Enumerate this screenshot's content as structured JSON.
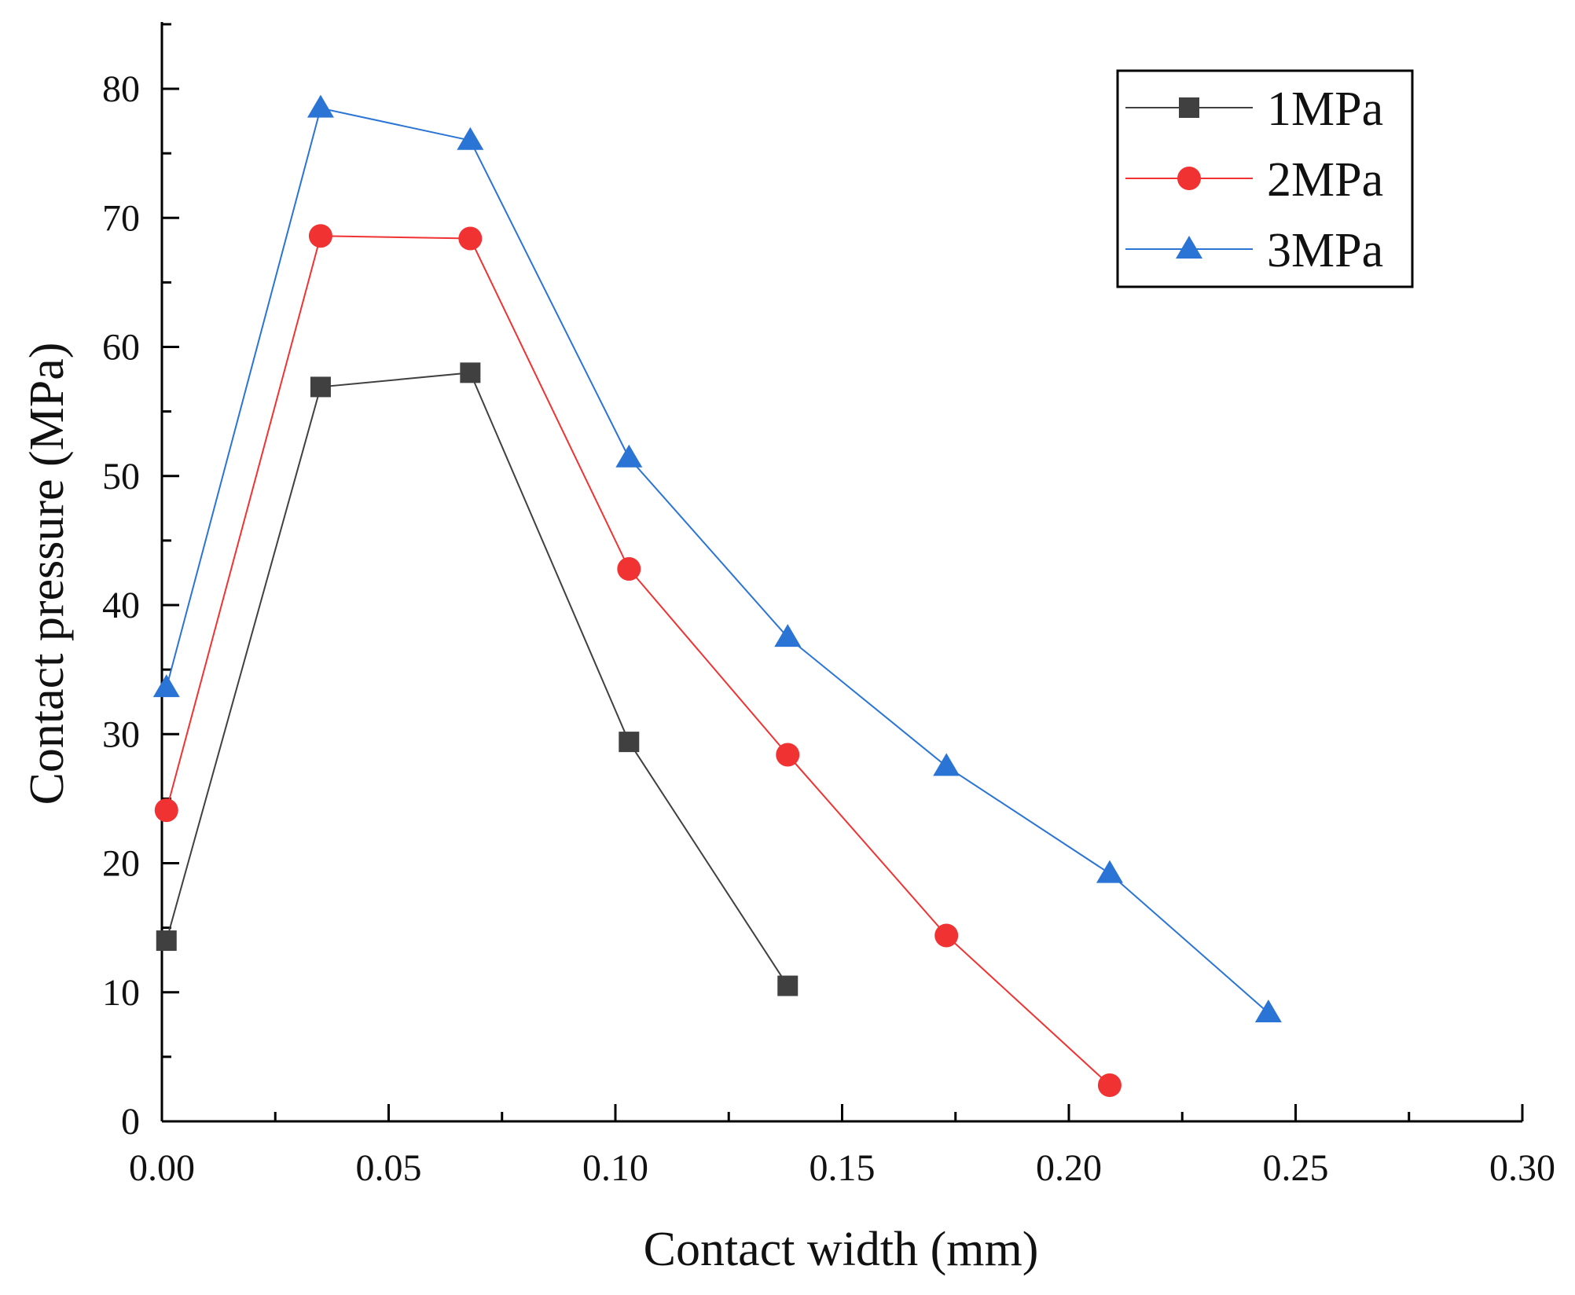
{
  "chart_data": {
    "type": "line",
    "title": "",
    "xlabel": "Contact width (mm)",
    "ylabel": "Contact pressure (MPa)",
    "xlim": [
      0,
      0.3
    ],
    "ylim": [
      0,
      85
    ],
    "x_ticks": [
      0.0,
      0.05,
      0.1,
      0.15,
      0.2,
      0.25,
      0.3
    ],
    "x_tick_labels": [
      "0.00",
      "0.05",
      "0.10",
      "0.15",
      "0.20",
      "0.25",
      "0.30"
    ],
    "y_ticks": [
      0,
      10,
      20,
      30,
      40,
      50,
      60,
      70,
      80
    ],
    "y_tick_labels": [
      "0",
      "10",
      "20",
      "30",
      "40",
      "50",
      "60",
      "70",
      "80"
    ],
    "grid": false,
    "legend_position": "top-right",
    "series": [
      {
        "name": "1MPa",
        "color": "#404040",
        "marker": "square",
        "x": [
          0.001,
          0.035,
          0.068,
          0.103,
          0.138
        ],
        "y": [
          14.0,
          56.9,
          58.0,
          29.4,
          10.5
        ]
      },
      {
        "name": "2MPa",
        "color": "#f03232",
        "marker": "circle",
        "x": [
          0.001,
          0.035,
          0.068,
          0.103,
          0.138,
          0.173,
          0.209
        ],
        "y": [
          24.1,
          68.6,
          68.4,
          42.8,
          28.4,
          14.4,
          2.8
        ]
      },
      {
        "name": "3MPa",
        "color": "#2a74d6",
        "marker": "triangle",
        "x": [
          0.001,
          0.035,
          0.068,
          0.103,
          0.138,
          0.173,
          0.209,
          0.244
        ],
        "y": [
          33.6,
          78.5,
          76.0,
          51.4,
          37.5,
          27.5,
          19.2,
          8.4
        ]
      }
    ]
  }
}
